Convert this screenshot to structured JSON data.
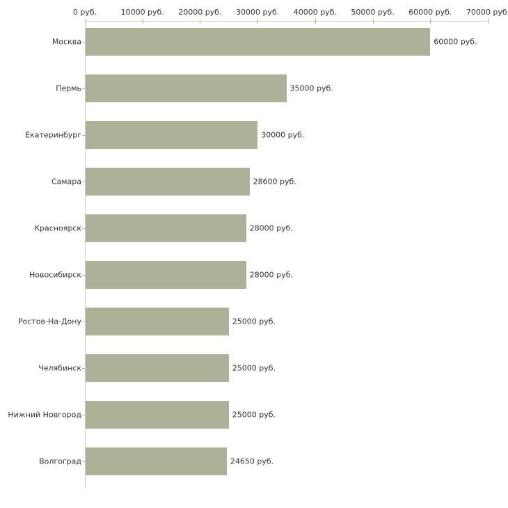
{
  "chart_data": {
    "type": "bar",
    "orientation": "horizontal",
    "title": "",
    "xlabel": "",
    "ylabel": "",
    "grid": false,
    "legend": null,
    "categories": [
      "Москва",
      "Пермь",
      "Екатеринбург",
      "Самара",
      "Красноярск",
      "Новосибирск",
      "Ростов-На-Дону",
      "Челябинск",
      "Нижний Новгород",
      "Волгоград"
    ],
    "values": [
      60000,
      35000,
      30000,
      28600,
      28000,
      28000,
      25000,
      25000,
      25000,
      24650
    ],
    "value_labels": [
      "60000 руб.",
      "35000 руб.",
      "30000 руб.",
      "28600 руб.",
      "28000 руб.",
      "28000 руб.",
      "25000 руб.",
      "25000 руб.",
      "25000 руб.",
      "24650 руб."
    ],
    "x_axis": {
      "min": 0,
      "max": 70000,
      "position": "top",
      "tick_values": [
        0,
        10000,
        20000,
        30000,
        40000,
        50000,
        60000,
        70000
      ],
      "tick_labels": [
        "0 руб.",
        "10000 руб.",
        "20000 руб.",
        "30000 руб.",
        "40000 руб.",
        "50000 руб.",
        "60000 руб.",
        "70000 руб."
      ]
    },
    "colors": {
      "bar": "#acb197",
      "axis_line": "#cdcdc3",
      "tick": "#b2b18c",
      "text": "#333333",
      "background": "#ffffff"
    }
  }
}
